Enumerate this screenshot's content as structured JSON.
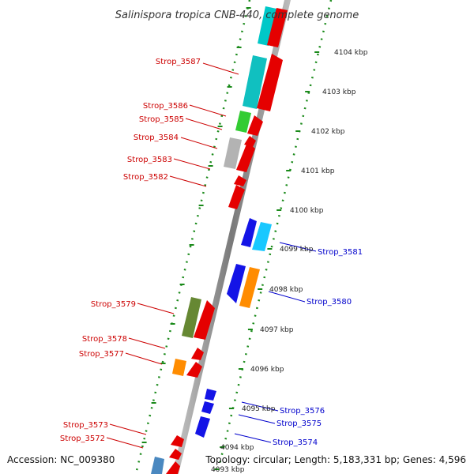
{
  "title": "Salinispora tropica CNB-440, complete genome",
  "footer": {
    "accession": "Accession: NC_009380",
    "topology": "Topology: circular; Length: 5,183,331 bp; Genes: 4,596"
  },
  "colors": {
    "forward_label": "#cc0000",
    "reverse_label": "#0000cc",
    "backbone": "#8c8c8c",
    "tick": "#1a7a1a"
  },
  "ticks": [
    "4093 kbp",
    "4094 kbp",
    "4095 kbp",
    "4096 kbp",
    "4097 kbp",
    "4098 kbp",
    "4099 kbp",
    "4100 kbp",
    "4101 kbp",
    "4102 kbp",
    "4103 kbp",
    "4104 kbp"
  ],
  "gene_labels": [
    {
      "text": "Strop_3587",
      "strand": "forward"
    },
    {
      "text": "Strop_3586",
      "strand": "forward"
    },
    {
      "text": "Strop_3585",
      "strand": "forward"
    },
    {
      "text": "Strop_3584",
      "strand": "forward"
    },
    {
      "text": "Strop_3583",
      "strand": "forward"
    },
    {
      "text": "Strop_3582",
      "strand": "forward"
    },
    {
      "text": "Strop_3581",
      "strand": "reverse"
    },
    {
      "text": "Strop_3580",
      "strand": "reverse"
    },
    {
      "text": "Strop_3579",
      "strand": "forward"
    },
    {
      "text": "Strop_3578",
      "strand": "forward"
    },
    {
      "text": "Strop_3577",
      "strand": "forward"
    },
    {
      "text": "Strop_3576",
      "strand": "reverse"
    },
    {
      "text": "Strop_3575",
      "strand": "reverse"
    },
    {
      "text": "Strop_3574",
      "strand": "reverse"
    },
    {
      "text": "Strop_3573",
      "strand": "forward"
    },
    {
      "text": "Strop_3572",
      "strand": "forward"
    }
  ],
  "features": [
    {
      "name": "cds-feature",
      "color": "#e50000",
      "strand": "forward"
    },
    {
      "name": "trna-feature",
      "color": "#00c8c8",
      "strand": "forward"
    },
    {
      "name": "rrna-feature",
      "color": "#33cc33",
      "strand": "forward"
    },
    {
      "name": "misc-feature",
      "color": "#b3b3b3",
      "strand": "forward"
    },
    {
      "name": "reverse-cds-feature",
      "color": "#1414e6",
      "strand": "reverse"
    },
    {
      "name": "reverse-trna-feature",
      "color": "#19c8ff",
      "strand": "reverse"
    },
    {
      "name": "reverse-misc-feature",
      "color": "#ff8c00",
      "strand": "reverse"
    },
    {
      "name": "forward-other-feature",
      "color": "#668833",
      "strand": "forward"
    },
    {
      "name": "forward-orange-feature",
      "color": "#ff8c00",
      "strand": "forward"
    },
    {
      "name": "forward-steel-feature",
      "color": "#4a88c0",
      "strand": "forward"
    }
  ]
}
